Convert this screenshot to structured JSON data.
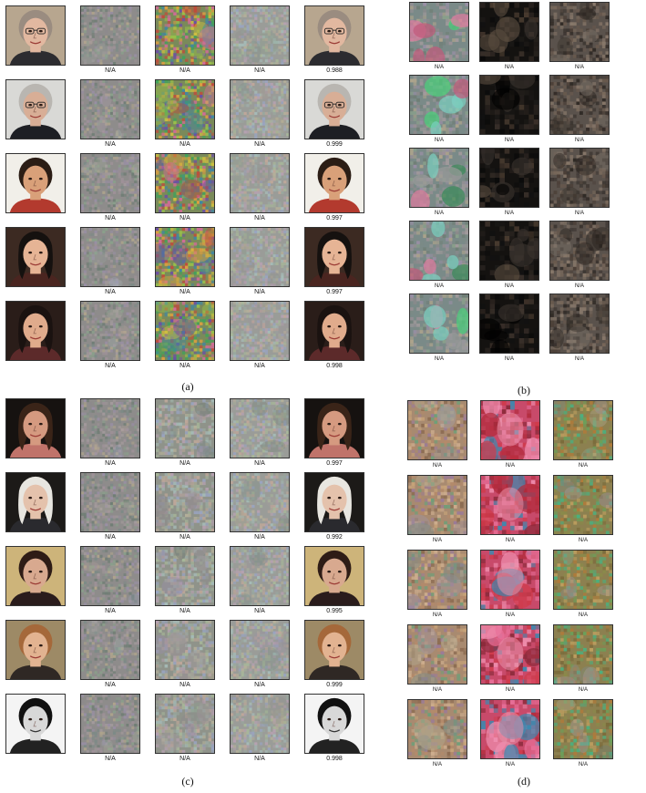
{
  "panels": [
    {
      "id": "a",
      "label": "(a)",
      "cols": 5,
      "rows": [
        {
          "portrait": {
            "skin": "#e2b8a0",
            "hair": "#9a8c80",
            "bg": "#b7a68f",
            "cloth": "#2c2c30",
            "glasses": true,
            "darkbg": false
          },
          "captions": [
            "N/A",
            "N/A",
            "N/A",
            "0.988"
          ]
        },
        {
          "portrait": {
            "skin": "#d8ae96",
            "hair": "#b9b6b1",
            "bg": "#d9d9d6",
            "cloth": "#1d1f24",
            "glasses": true,
            "darkbg": false
          },
          "captions": [
            "N/A",
            "N/A",
            "N/A",
            "0.999"
          ]
        },
        {
          "portrait": {
            "skin": "#d9a079",
            "hair": "#2b1d15",
            "bg": "#f1efe9",
            "cloth": "#b33a2e",
            "glasses": false,
            "darkbg": false
          },
          "captions": [
            "N/A",
            "N/A",
            "N/A",
            "0.997"
          ]
        },
        {
          "portrait": {
            "skin": "#e6b495",
            "hair": "#15110f",
            "bg": "#3c2a22",
            "cloth": "#4a2520",
            "glasses": false,
            "darkbg": true
          },
          "captions": [
            "N/A",
            "N/A",
            "N/A",
            "0.997"
          ]
        },
        {
          "portrait": {
            "skin": "#e0ab8c",
            "hair": "#1a1210",
            "bg": "#2a1d19",
            "cloth": "#5c2a2a",
            "glasses": false,
            "darkbg": true
          },
          "captions": [
            "N/A",
            "N/A",
            "N/A",
            "0.998"
          ]
        }
      ]
    },
    {
      "id": "b",
      "label": "(b)",
      "cols": 3,
      "rows": [
        {
          "captions": [
            "N/A",
            "N/A",
            "N/A"
          ]
        },
        {
          "captions": [
            "N/A",
            "N/A",
            "N/A"
          ]
        },
        {
          "captions": [
            "N/A",
            "N/A",
            "N/A"
          ]
        },
        {
          "captions": [
            "N/A",
            "N/A",
            "N/A"
          ]
        },
        {
          "captions": [
            "N/A",
            "N/A",
            "N/A"
          ]
        }
      ]
    },
    {
      "id": "c",
      "label": "(c)",
      "cols": 5,
      "rows": [
        {
          "portrait": {
            "skin": "#d59a80",
            "hair": "#3a2418",
            "bg": "#161210",
            "cloth": "#c0736a",
            "glasses": false,
            "darkbg": true
          },
          "captions": [
            "N/A",
            "N/A",
            "N/A",
            "0.997"
          ]
        },
        {
          "portrait": {
            "skin": "#e4c2ac",
            "hair": "#e8e6e0",
            "bg": "#1c1a18",
            "cloth": "#2a2a2e",
            "glasses": false,
            "darkbg": true
          },
          "captions": [
            "N/A",
            "N/A",
            "N/A",
            "0.992"
          ]
        },
        {
          "portrait": {
            "skin": "#d8a98f",
            "hair": "#2e1c16",
            "bg": "#cdb47a",
            "cloth": "#2a1c1c",
            "glasses": false,
            "darkbg": false
          },
          "captions": [
            "N/A",
            "N/A",
            "N/A",
            "0.995"
          ]
        },
        {
          "portrait": {
            "skin": "#e2b391",
            "hair": "#a5683a",
            "bg": "#9d8a66",
            "cloth": "#2f2824",
            "glasses": false,
            "darkbg": false
          },
          "captions": [
            "N/A",
            "N/A",
            "N/A",
            "0.999"
          ]
        },
        {
          "portrait": {
            "skin": "#d8d8d8",
            "hair": "#111111",
            "bg": "#f4f4f4",
            "cloth": "#222222",
            "glasses": false,
            "darkbg": false,
            "mono": true
          },
          "captions": [
            "N/A",
            "N/A",
            "N/A",
            "0.998"
          ]
        }
      ]
    },
    {
      "id": "d",
      "label": "(d)",
      "cols": 3,
      "rows": [
        {
          "captions": [
            "N/A",
            "N/A",
            "N/A"
          ]
        },
        {
          "captions": [
            "N/A",
            "N/A",
            "N/A"
          ]
        },
        {
          "captions": [
            "N/A",
            "N/A",
            "N/A"
          ]
        },
        {
          "captions": [
            "N/A",
            "N/A",
            "N/A"
          ]
        },
        {
          "captions": [
            "N/A",
            "N/A",
            "N/A"
          ]
        }
      ]
    }
  ]
}
